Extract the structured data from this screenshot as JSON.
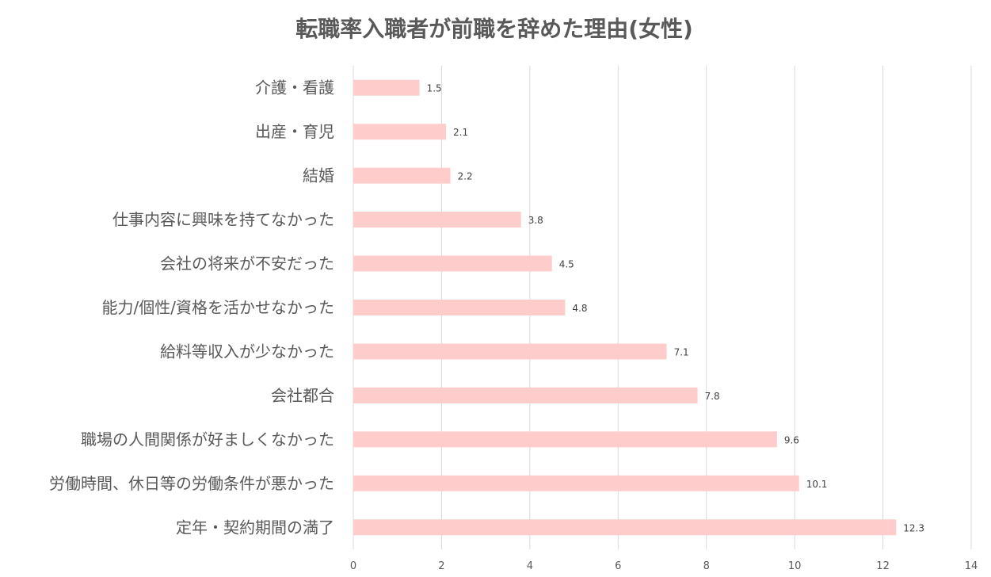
{
  "chart_data": {
    "type": "bar",
    "orientation": "horizontal",
    "title": "転職率入職者が前職を辞めた理由(女性)",
    "categories": [
      "介護・看護",
      "出産・育児",
      "結婚",
      "仕事内容に興味を持てなかった",
      "会社の将来が不安だった",
      "能力/個性/資格を活かせなかった",
      "給料等収入が少なかった",
      "会社都合",
      "職場の人間関係が好ましくなかった",
      "労働時間、休日等の労働条件が悪かった",
      "定年・契約期間の満了"
    ],
    "values": [
      1.5,
      2.1,
      2.2,
      3.8,
      4.5,
      4.8,
      7.1,
      7.8,
      9.6,
      10.1,
      12.3
    ],
    "data_labels": [
      "1.5",
      "2.1",
      "2.2",
      "3.8",
      "4.5",
      "4.8",
      "7.1",
      "7.8",
      "9.6",
      "10.1",
      "12.3"
    ],
    "xlim": [
      0,
      14
    ],
    "x_ticks": [
      0,
      2,
      4,
      6,
      8,
      10,
      12,
      14
    ],
    "x_tick_labels": [
      "0",
      "2",
      "4",
      "6",
      "8",
      "10",
      "12",
      "14"
    ],
    "grid": "vertical",
    "legend": "none",
    "bar_color": "#ffcccc"
  }
}
